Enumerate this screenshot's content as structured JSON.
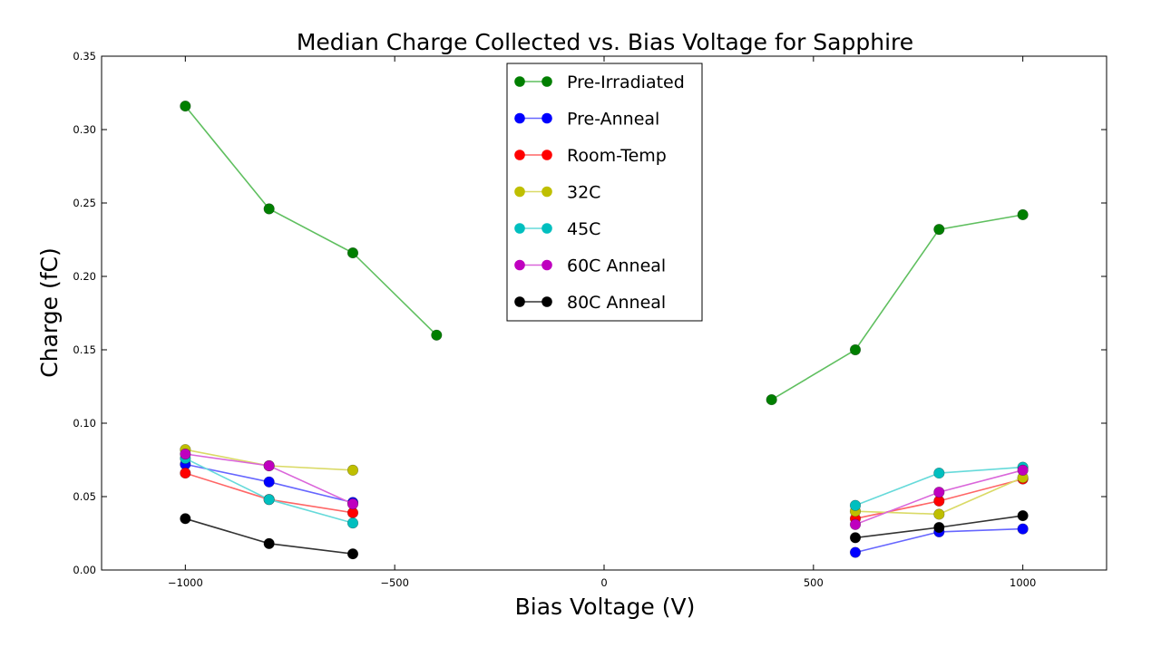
{
  "chart_data": {
    "type": "line",
    "title": "Median Charge Collected vs. Bias Voltage for Sapphire",
    "xlabel": "Bias Voltage (V)",
    "ylabel": "Charge (fC)",
    "xlim": [
      -1200,
      1200
    ],
    "ylim": [
      0,
      0.35
    ],
    "grid": false,
    "legend_position": "top-center",
    "x_ticks": [
      -1000,
      -500,
      0,
      500,
      1000
    ],
    "x_tick_labels": [
      "−1000",
      "−500",
      "0",
      "500",
      "1000"
    ],
    "y_ticks": [
      0.0,
      0.05,
      0.1,
      0.15,
      0.2,
      0.25,
      0.3,
      0.35
    ],
    "y_tick_labels": [
      "0.00",
      "0.05",
      "0.10",
      "0.15",
      "0.20",
      "0.25",
      "0.30",
      "0.35"
    ],
    "series": [
      {
        "name": "Pre-Irradiated",
        "color": "#007f00",
        "line_color": "#5fbf5f",
        "segments": [
          [
            [
              -1000,
              0.316
            ],
            [
              -800,
              0.246
            ],
            [
              -600,
              0.216
            ],
            [
              -400,
              0.16
            ]
          ],
          [
            [
              400,
              0.116
            ],
            [
              600,
              0.15
            ],
            [
              800,
              0.232
            ],
            [
              1000,
              0.242
            ]
          ]
        ]
      },
      {
        "name": "Pre-Anneal",
        "color": "#0000ff",
        "line_color": "#6666ff",
        "segments": [
          [
            [
              -1000,
              0.072
            ],
            [
              -800,
              0.06
            ],
            [
              -600,
              0.046
            ]
          ],
          [
            [
              600,
              0.012
            ],
            [
              800,
              0.026
            ],
            [
              1000,
              0.028
            ]
          ]
        ]
      },
      {
        "name": "Room-Temp",
        "color": "#ff0000",
        "line_color": "#ff6666",
        "segments": [
          [
            [
              -1000,
              0.066
            ],
            [
              -800,
              0.048
            ],
            [
              -600,
              0.039
            ]
          ],
          [
            [
              600,
              0.035
            ],
            [
              800,
              0.047
            ],
            [
              1000,
              0.062
            ]
          ]
        ]
      },
      {
        "name": "32C",
        "color": "#bfbf00",
        "line_color": "#dada66",
        "segments": [
          [
            [
              -1000,
              0.082
            ],
            [
              -800,
              0.071
            ],
            [
              -600,
              0.068
            ]
          ],
          [
            [
              600,
              0.04
            ],
            [
              800,
              0.038
            ],
            [
              1000,
              0.063
            ]
          ]
        ]
      },
      {
        "name": "45C",
        "color": "#00bfbf",
        "line_color": "#66dada",
        "segments": [
          [
            [
              -1000,
              0.076
            ],
            [
              -800,
              0.048
            ],
            [
              -600,
              0.032
            ]
          ],
          [
            [
              600,
              0.044
            ],
            [
              800,
              0.066
            ],
            [
              1000,
              0.07
            ]
          ]
        ]
      },
      {
        "name": "60C Anneal",
        "color": "#bf00bf",
        "line_color": "#da66da",
        "segments": [
          [
            [
              -1000,
              0.079
            ],
            [
              -800,
              0.071
            ],
            [
              -600,
              0.045
            ]
          ],
          [
            [
              600,
              0.031
            ],
            [
              800,
              0.053
            ],
            [
              1000,
              0.068
            ]
          ]
        ]
      },
      {
        "name": "80C Anneal",
        "color": "#000000",
        "line_color": "#333333",
        "segments": [
          [
            [
              -1000,
              0.035
            ],
            [
              -800,
              0.018
            ],
            [
              -600,
              0.011
            ]
          ],
          [
            [
              600,
              0.022
            ],
            [
              800,
              0.029
            ],
            [
              1000,
              0.037
            ]
          ]
        ]
      }
    ]
  }
}
